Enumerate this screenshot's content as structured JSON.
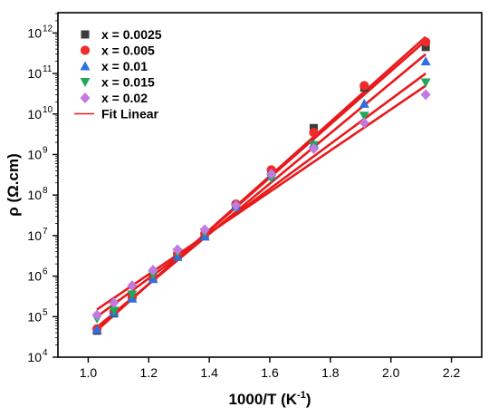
{
  "chart_data": {
    "type": "scatter",
    "xlabel": "1000/T (K",
    "xlabel_sup": "-1",
    "xlabel_close": ")",
    "ylabel": "ρ (Ω.cm)",
    "xlim": [
      0.9,
      2.3
    ],
    "xticks": [
      1.0,
      1.2,
      1.4,
      1.6,
      1.8,
      2.0,
      2.2
    ],
    "ylim_log10": [
      4,
      12.5
    ],
    "yscale": "log",
    "yticks_exp": [
      4,
      5,
      6,
      7,
      8,
      9,
      10,
      11,
      12
    ],
    "ytick_base": "10",
    "grid": false,
    "legend_position": "top-left",
    "x": [
      1.029,
      1.085,
      1.145,
      1.214,
      1.295,
      1.385,
      1.488,
      1.605,
      1.745,
      1.912,
      2.115
    ],
    "series": [
      {
        "name": "x = 0.0025",
        "marker": "square",
        "color": "#3c3c3c",
        "values": [
          45000.0,
          120000.0,
          290000.0,
          900000.0,
          3200000.0,
          10000000.0,
          55000000.0,
          380000000.0,
          4500000000.0,
          45000000000.0,
          450000000000.0
        ]
      },
      {
        "name": "x = 0.005",
        "marker": "circle",
        "color": "#ef2b2b",
        "values": [
          50000.0,
          130000.0,
          300000.0,
          950000.0,
          3500000.0,
          11000000.0,
          60000000.0,
          420000000.0,
          3500000000.0,
          50000000000.0,
          600000000000.0
        ]
      },
      {
        "name": "x = 0.01",
        "marker": "triangle-up",
        "color": "#2f6fe0",
        "values": [
          48000.0,
          125000.0,
          280000.0,
          850000.0,
          3000000.0,
          9500000.0,
          52000000.0,
          300000000.0,
          1800000000.0,
          18000000000.0,
          200000000000.0
        ]
      },
      {
        "name": "x = 0.015",
        "marker": "triangle-down",
        "color": "#1fa85a",
        "values": [
          90000.0,
          140000.0,
          350000.0,
          1100000.0,
          3800000.0,
          12000000.0,
          50000000.0,
          260000000.0,
          1700000000.0,
          9000000000.0,
          60000000000.0
        ]
      },
      {
        "name": "x = 0.02",
        "marker": "diamond",
        "color": "#c07ae0",
        "values": [
          110000.0,
          220000.0,
          580000.0,
          1400000.0,
          4500000.0,
          14000000.0,
          55000000.0,
          330000000.0,
          1400000000.0,
          6000000000.0,
          30000000000.0
        ]
      }
    ],
    "fit": {
      "name": "Fit Linear",
      "color": "#e8191b",
      "lines": [
        {
          "x0": 1.029,
          "y0": 46000.0,
          "x1": 2.115,
          "y1": 800000000000.0
        },
        {
          "x0": 1.029,
          "y0": 48000.0,
          "x1": 2.115,
          "y1": 650000000000.0
        },
        {
          "x0": 1.029,
          "y0": 55000.0,
          "x1": 2.115,
          "y1": 300000000000.0
        },
        {
          "x0": 1.029,
          "y0": 100000.0,
          "x1": 2.115,
          "y1": 100000000000.0
        },
        {
          "x0": 1.029,
          "y0": 150000.0,
          "x1": 2.115,
          "y1": 50000000000.0
        }
      ]
    }
  }
}
